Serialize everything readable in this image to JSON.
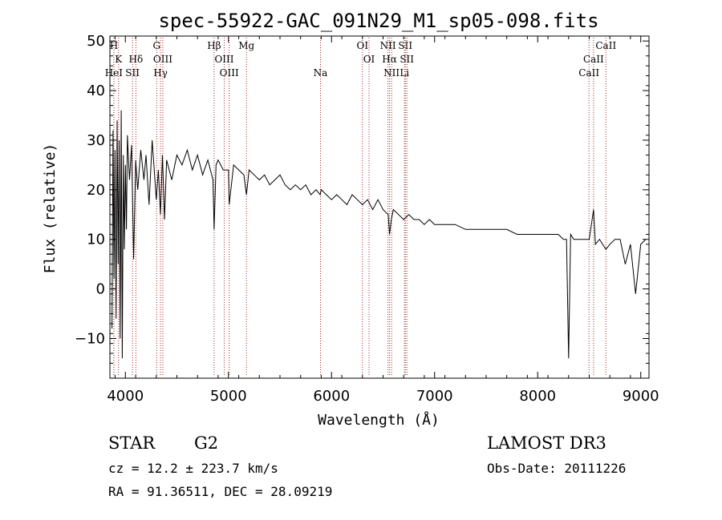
{
  "chart_data": {
    "type": "line",
    "title": "spec-55922-GAC_091N29_M1_sp05-098.fits",
    "xlabel": "Wavelength (Å)",
    "ylabel": "Flux (relative)",
    "xlim": [
      3850,
      9080
    ],
    "ylim": [
      -18,
      51
    ],
    "xticks": [
      4000,
      5000,
      6000,
      7000,
      8000,
      9000
    ],
    "xtick_labels": [
      "4000",
      "5000",
      "6000",
      "7000",
      "8000",
      "9000"
    ],
    "yticks": [
      -10,
      0,
      10,
      20,
      30,
      40,
      50
    ],
    "ytick_labels": [
      "−10",
      "0",
      "10",
      "20",
      "30",
      "40",
      "50"
    ],
    "grid": false,
    "line_color": "#000000",
    "marker_color": "#aa2222",
    "series": [
      {
        "name": "spectrum",
        "x": [
          3870,
          3880,
          3890,
          3900,
          3910,
          3920,
          3930,
          3940,
          3950,
          3960,
          3970,
          3980,
          3990,
          4000,
          4010,
          4020,
          4040,
          4060,
          4080,
          4100,
          4120,
          4150,
          4180,
          4200,
          4230,
          4260,
          4300,
          4320,
          4340,
          4360,
          4380,
          4400,
          4450,
          4500,
          4550,
          4600,
          4650,
          4700,
          4750,
          4800,
          4850,
          4861,
          4880,
          4900,
          4950,
          5000,
          5007,
          5050,
          5100,
          5150,
          5175,
          5200,
          5250,
          5300,
          5350,
          5400,
          5450,
          5500,
          5550,
          5600,
          5650,
          5700,
          5750,
          5800,
          5850,
          5890,
          5900,
          5950,
          6000,
          6050,
          6100,
          6150,
          6200,
          6250,
          6300,
          6350,
          6400,
          6450,
          6500,
          6550,
          6563,
          6580,
          6600,
          6650,
          6700,
          6750,
          6800,
          6850,
          6900,
          6950,
          7000,
          7100,
          7200,
          7300,
          7400,
          7500,
          7600,
          7700,
          7800,
          7900,
          8000,
          8100,
          8200,
          8250,
          8280,
          8300,
          8320,
          8350,
          8400,
          8450,
          8500,
          8542,
          8560,
          8600,
          8662,
          8700,
          8750,
          8800,
          8850,
          8900,
          8950,
          9000,
          9050
        ],
        "y": [
          -8,
          32,
          2,
          28,
          -6,
          34,
          5,
          30,
          -10,
          36,
          -14,
          27,
          8,
          25,
          12,
          31,
          22,
          29,
          6,
          26,
          20,
          28,
          22,
          27,
          17,
          30,
          18,
          24,
          15,
          27,
          14,
          26,
          22,
          27,
          25,
          28,
          24,
          27,
          23,
          26,
          22,
          12,
          25,
          26,
          24,
          24,
          17,
          25,
          24,
          23,
          19,
          24,
          23,
          22,
          23,
          21,
          22,
          23,
          21,
          20,
          21,
          20,
          21,
          19,
          20,
          19,
          20,
          19,
          18,
          19,
          18,
          17,
          19,
          18,
          17,
          18,
          16,
          18,
          16,
          15,
          11,
          14,
          16,
          15,
          14,
          15,
          14,
          14,
          13,
          14,
          13,
          13,
          13,
          12,
          12,
          12,
          12,
          12,
          11,
          11,
          11,
          11,
          11,
          10,
          10,
          -14,
          11,
          10,
          10,
          10,
          10,
          16,
          9,
          10,
          8,
          9,
          10,
          10,
          5,
          9,
          -1,
          9,
          10
        ]
      }
    ],
    "line_markers": [
      {
        "label": "H",
        "x": 3889,
        "row": 1
      },
      {
        "label": "K",
        "x": 3934,
        "row": 2
      },
      {
        "label": "HeI",
        "x": 3888,
        "row": 3
      },
      {
        "label": "SII",
        "x": 4069,
        "row": 3
      },
      {
        "label": "Hδ",
        "x": 4102,
        "row": 2
      },
      {
        "label": "G",
        "x": 4304,
        "row": 1
      },
      {
        "label": "OIII",
        "x": 4363,
        "row": 2
      },
      {
        "label": "Hγ",
        "x": 4341,
        "row": 3
      },
      {
        "label": "Hβ",
        "x": 4861,
        "row": 1
      },
      {
        "label": "OIII",
        "x": 4959,
        "row": 2
      },
      {
        "label": "OIII",
        "x": 5007,
        "row": 3
      },
      {
        "label": "Mg",
        "x": 5175,
        "row": 1
      },
      {
        "label": "Na",
        "x": 5893,
        "row": 3
      },
      {
        "label": "OI",
        "x": 6300,
        "row": 1
      },
      {
        "label": "OI",
        "x": 6364,
        "row": 2
      },
      {
        "label": "NII",
        "x": 6548,
        "row": 1
      },
      {
        "label": "Hα",
        "x": 6563,
        "row": 2
      },
      {
        "label": "NII",
        "x": 6583,
        "row": 3
      },
      {
        "label": "SII",
        "x": 6716,
        "row": 1
      },
      {
        "label": "SII",
        "x": 6731,
        "row": 2
      },
      {
        "label": "Li",
        "x": 6708,
        "row": 3
      },
      {
        "label": "CaII",
        "x": 8662,
        "row": 1
      },
      {
        "label": "CaII",
        "x": 8542,
        "row": 2
      },
      {
        "label": "CaII",
        "x": 8498,
        "row": 3
      }
    ]
  },
  "footer": {
    "class_label": "STAR",
    "subclass": "G2",
    "survey": "LAMOST DR3",
    "redshift": "cz = 12.2 ± 223.7 km/s",
    "obs_date": "Obs-Date: 20111226",
    "coords": "RA =  91.36511, DEC =  28.09219"
  }
}
